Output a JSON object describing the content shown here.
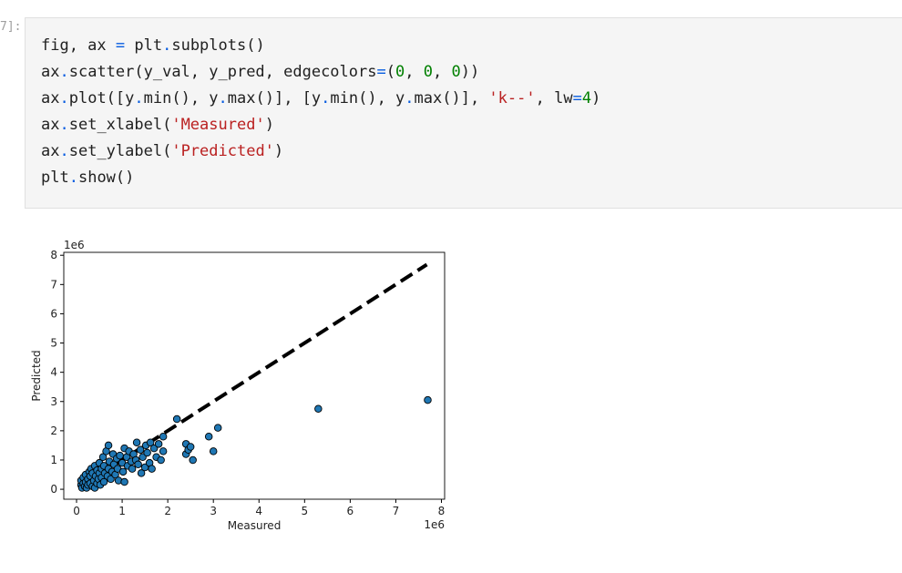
{
  "cell": {
    "prompt": "7]:",
    "code": [
      "fig, ax = plt.subplots()",
      "ax.scatter(y_val, y_pred, edgecolors=(0, 0, 0))",
      "ax.plot([y.min(), y.max()], [y.min(), y.max()], 'k--', lw=4)",
      "ax.set_xlabel('Measured')",
      "ax.set_ylabel('Predicted')",
      "plt.show()"
    ]
  },
  "chart_data": {
    "type": "scatter",
    "x_label": "Measured",
    "y_label": "Predicted",
    "x_offset_label": "1e6",
    "y_offset_label": "1e6",
    "xlim": [
      -0.28,
      8.07
    ],
    "ylim": [
      -0.34,
      8.1
    ],
    "xticks": [
      0,
      1,
      2,
      3,
      4,
      5,
      6,
      7,
      8
    ],
    "yticks": [
      0,
      1,
      2,
      3,
      4,
      5,
      6,
      7,
      8
    ],
    "points": {
      "color": "#1f77b4",
      "edgecolor": "#000000",
      "x": [
        0.1,
        0.1,
        0.12,
        0.15,
        0.15,
        0.18,
        0.2,
        0.2,
        0.22,
        0.25,
        0.25,
        0.28,
        0.3,
        0.3,
        0.32,
        0.35,
        0.35,
        0.38,
        0.4,
        0.4,
        0.42,
        0.45,
        0.45,
        0.48,
        0.5,
        0.5,
        0.52,
        0.55,
        0.55,
        0.58,
        0.6,
        0.6,
        0.62,
        0.65,
        0.68,
        0.7,
        0.7,
        0.72,
        0.75,
        0.78,
        0.8,
        0.82,
        0.85,
        0.88,
        0.9,
        0.92,
        0.95,
        1.0,
        1.02,
        1.05,
        1.05,
        1.1,
        1.12,
        1.15,
        1.2,
        1.22,
        1.25,
        1.3,
        1.32,
        1.35,
        1.4,
        1.42,
        1.45,
        1.5,
        1.52,
        1.55,
        1.6,
        1.62,
        1.65,
        1.7,
        1.75,
        1.8,
        1.85,
        1.9,
        1.9,
        2.2,
        2.4,
        2.4,
        2.45,
        2.5,
        2.55,
        2.9,
        3.0,
        3.1,
        5.3,
        7.7
      ],
      "y": [
        0.15,
        0.3,
        0.05,
        0.2,
        0.4,
        0.1,
        0.25,
        0.5,
        0.05,
        0.35,
        0.15,
        0.6,
        0.2,
        0.45,
        0.7,
        0.1,
        0.55,
        0.3,
        0.8,
        0.05,
        0.45,
        0.2,
        0.65,
        0.35,
        0.55,
        0.9,
        0.15,
        0.7,
        0.4,
        1.1,
        0.25,
        0.8,
        0.55,
        1.3,
        0.45,
        1.5,
        0.7,
        0.95,
        0.35,
        0.6,
        1.2,
        0.85,
        0.5,
        1.05,
        0.7,
        0.3,
        1.15,
        0.9,
        0.6,
        1.4,
        0.25,
        1.1,
        0.8,
        1.3,
        0.95,
        0.7,
        1.2,
        1.0,
        1.6,
        0.85,
        1.35,
        0.55,
        1.1,
        0.75,
        1.5,
        1.25,
        0.9,
        1.6,
        0.7,
        1.4,
        1.1,
        1.55,
        1.0,
        1.3,
        1.8,
        2.4,
        1.2,
        1.55,
        1.35,
        1.45,
        1.0,
        1.8,
        1.3,
        2.1,
        2.75,
        3.05
      ]
    },
    "line": {
      "color": "#000000",
      "style": "dashed",
      "width": 4,
      "x": [
        0.08,
        7.68
      ],
      "y": [
        0.08,
        7.68
      ]
    }
  }
}
